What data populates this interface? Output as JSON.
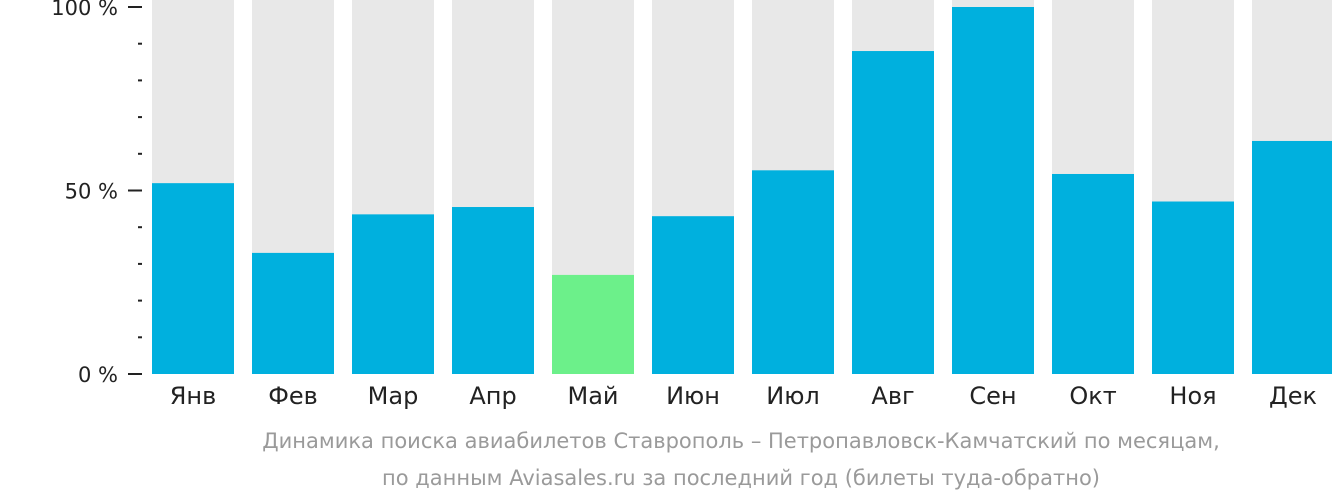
{
  "chart_data": {
    "type": "bar",
    "categories": [
      "Янв",
      "Фев",
      "Мар",
      "Апр",
      "Май",
      "Июн",
      "Июл",
      "Авг",
      "Сен",
      "Окт",
      "Ноя",
      "Дек"
    ],
    "values": [
      52,
      33,
      43.5,
      45.5,
      27,
      43,
      55.5,
      88,
      100,
      54.5,
      47,
      63.5
    ],
    "ylim": [
      0,
      100
    ],
    "ytick_labels": [
      "0 %",
      "50 %",
      "100 %"
    ],
    "yticks": [
      0,
      50,
      100
    ],
    "minor_tick_step": 10,
    "highlight_index": 4,
    "colors": {
      "bar": "#00b0de",
      "highlight": "#6cf08a",
      "background_bar": "#e8e8e8",
      "axis": "#222222"
    },
    "caption_lines": [
      "Динамика поиска авиабилетов Ставрополь – Петропавловск-Камчатский по месяцам,",
      "по данным Aviasales.ru за последний год (билеты туда-обратно)"
    ]
  }
}
